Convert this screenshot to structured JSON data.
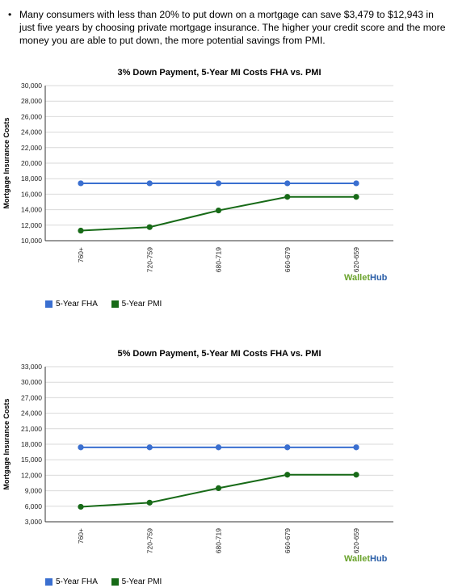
{
  "text_block": {
    "bullet": "•",
    "paragraph": "Many consumers with less than 20% to put down on a mortgage can save $3,479 to $12,943 in just five years by choosing private mortgage insurance.  The higher your credit score and the more money you are able to put down, the more potential savings from PMI."
  },
  "colors": {
    "fha": "#3a6fd0",
    "pmi": "#176a17",
    "grid": "#d9d9d9",
    "axis": "#333333"
  },
  "watermark": {
    "part1": "Wallet",
    "part2": "Hub"
  },
  "chart_data": [
    {
      "type": "line",
      "title": "3% Down Payment, 5-Year MI Costs FHA vs. PMI",
      "ylabel": "Mortgage Insurance Costs",
      "categories": [
        "760+",
        "720-759",
        "680-719",
        "660-679",
        "620-659"
      ],
      "ylim": [
        10000,
        30000
      ],
      "yticks": [
        "10,000",
        "12,000",
        "14,000",
        "16,000",
        "18,000",
        "20,000",
        "22,000",
        "24,000",
        "26,000",
        "28,000",
        "30,000"
      ],
      "series": [
        {
          "name": "5-Year FHA",
          "values": [
            17400,
            17400,
            17400,
            17400,
            17400
          ]
        },
        {
          "name": "5-Year PMI",
          "values": [
            11300,
            11750,
            13900,
            15650,
            15650
          ]
        }
      ],
      "grid": true,
      "legend": "bottom-left"
    },
    {
      "type": "line",
      "title": "5% Down Payment, 5-Year MI Costs FHA vs. PMI",
      "ylabel": "Mortgage Insurance Costs",
      "categories": [
        "760+",
        "720-759",
        "680-719",
        "660-679",
        "620-659"
      ],
      "ylim": [
        3000,
        33000
      ],
      "yticks": [
        "3,000",
        "6,000",
        "9,000",
        "12,000",
        "15,000",
        "18,000",
        "21,000",
        "24,000",
        "27,000",
        "30,000",
        "33,000"
      ],
      "series": [
        {
          "name": "5-Year FHA",
          "values": [
            17400,
            17400,
            17400,
            17400,
            17400
          ]
        },
        {
          "name": "5-Year PMI",
          "values": [
            5900,
            6700,
            9500,
            12100,
            12100
          ]
        }
      ],
      "grid": true,
      "legend": "bottom-left"
    }
  ]
}
